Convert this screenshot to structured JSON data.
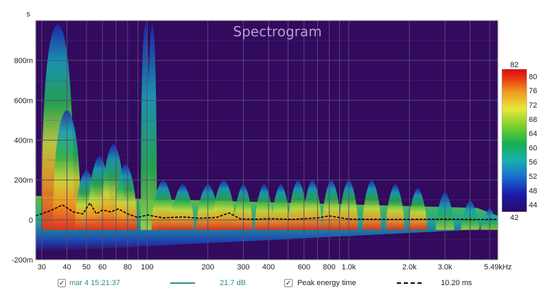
{
  "chart_data": {
    "type": "heatmap",
    "title": "Spectrogram",
    "y_unit_label": "s",
    "y_ticks": [
      {
        "v": 0.8,
        "label": "800m"
      },
      {
        "v": 0.6,
        "label": "600m"
      },
      {
        "v": 0.4,
        "label": "400m"
      },
      {
        "v": 0.2,
        "label": "200m"
      },
      {
        "v": 0.0,
        "label": "0"
      },
      {
        "v": -0.2,
        "label": "-200m"
      }
    ],
    "ylim": [
      -0.2,
      1.0
    ],
    "xlim": [
      28,
      5490
    ],
    "x_scale": "log",
    "x_ticks": [
      {
        "v": 30,
        "label": "30"
      },
      {
        "v": 40,
        "label": "40"
      },
      {
        "v": 50,
        "label": "50"
      },
      {
        "v": 60,
        "label": "60"
      },
      {
        "v": 80,
        "label": "80"
      },
      {
        "v": 100,
        "label": "100"
      },
      {
        "v": 200,
        "label": "200"
      },
      {
        "v": 300,
        "label": "300"
      },
      {
        "v": 400,
        "label": "400"
      },
      {
        "v": 600,
        "label": "600"
      },
      {
        "v": 800,
        "label": "800"
      },
      {
        "v": 1000,
        "label": "1.0k"
      },
      {
        "v": 2000,
        "label": "2.0k"
      },
      {
        "v": 3000,
        "label": "3.0k"
      },
      {
        "v": 5490,
        "label": "5.49kHz"
      }
    ],
    "x_minor": [
      70,
      90,
      500,
      700,
      900,
      4000,
      5000
    ],
    "colorbar": {
      "min": 42,
      "max": 82,
      "labels": [
        "82",
        "80",
        "76",
        "72",
        "68",
        "64",
        "60",
        "56",
        "52",
        "48",
        "44",
        "42"
      ],
      "label_values": [
        82,
        80,
        76,
        72,
        68,
        64,
        60,
        56,
        52,
        48,
        44,
        42
      ]
    },
    "peak_energy_time": [
      [
        28,
        0.02
      ],
      [
        33,
        0.045
      ],
      [
        38,
        0.075
      ],
      [
        43,
        0.04
      ],
      [
        48,
        0.03
      ],
      [
        52,
        0.085
      ],
      [
        56,
        0.03
      ],
      [
        60,
        0.05
      ],
      [
        66,
        0.04
      ],
      [
        72,
        0.055
      ],
      [
        80,
        0.03
      ],
      [
        90,
        0.012
      ],
      [
        100,
        0.025
      ],
      [
        120,
        0.01
      ],
      [
        150,
        0.015
      ],
      [
        180,
        0.008
      ],
      [
        220,
        0.012
      ],
      [
        255,
        0.035
      ],
      [
        290,
        0.005
      ],
      [
        350,
        0.004
      ],
      [
        420,
        0.006
      ],
      [
        520,
        0.003
      ],
      [
        600,
        0.006
      ],
      [
        700,
        0.01
      ],
      [
        800,
        0.02
      ],
      [
        1000,
        0.004
      ],
      [
        1400,
        0.003
      ],
      [
        2000,
        0.003
      ],
      [
        3000,
        0.004
      ],
      [
        4200,
        0.002
      ],
      [
        5490,
        0.003
      ]
    ],
    "energy_blobs": [
      {
        "f": 36,
        "t_top": 0.98,
        "level": 72,
        "w": 0.07
      },
      {
        "f": 40,
        "t_top": 0.55,
        "level": 78,
        "w": 0.06
      },
      {
        "f": 50,
        "t_top": 0.25,
        "level": 66,
        "w": 0.05
      },
      {
        "f": 58,
        "t_top": 0.32,
        "level": 68,
        "w": 0.05
      },
      {
        "f": 68,
        "t_top": 0.38,
        "level": 72,
        "w": 0.05
      },
      {
        "f": 78,
        "t_top": 0.28,
        "level": 70,
        "w": 0.05
      },
      {
        "f": 98,
        "t_top": 0.98,
        "level": 54,
        "w": 0.02
      },
      {
        "f": 106,
        "t_top": 0.98,
        "level": 52,
        "w": 0.02
      },
      {
        "f": 120,
        "t_top": 0.2,
        "level": 74,
        "w": 0.05
      },
      {
        "f": 150,
        "t_top": 0.18,
        "level": 76,
        "w": 0.05
      },
      {
        "f": 200,
        "t_top": 0.18,
        "level": 74,
        "w": 0.05
      },
      {
        "f": 240,
        "t_top": 0.2,
        "level": 80,
        "w": 0.05
      },
      {
        "f": 300,
        "t_top": 0.18,
        "level": 74,
        "w": 0.04
      },
      {
        "f": 380,
        "t_top": 0.18,
        "level": 74,
        "w": 0.04
      },
      {
        "f": 460,
        "t_top": 0.18,
        "level": 74,
        "w": 0.04
      },
      {
        "f": 560,
        "t_top": 0.2,
        "level": 80,
        "w": 0.04
      },
      {
        "f": 660,
        "t_top": 0.2,
        "level": 78,
        "w": 0.04
      },
      {
        "f": 820,
        "t_top": 0.2,
        "level": 80,
        "w": 0.04
      },
      {
        "f": 1000,
        "t_top": 0.2,
        "level": 74,
        "w": 0.04
      },
      {
        "f": 1300,
        "t_top": 0.2,
        "level": 72,
        "w": 0.04
      },
      {
        "f": 1700,
        "t_top": 0.18,
        "level": 70,
        "w": 0.04
      },
      {
        "f": 2200,
        "t_top": 0.16,
        "level": 66,
        "w": 0.04
      },
      {
        "f": 3000,
        "t_top": 0.14,
        "level": 64,
        "w": 0.04
      },
      {
        "f": 4000,
        "t_top": 0.1,
        "level": 58,
        "w": 0.04
      },
      {
        "f": 5000,
        "t_top": 0.06,
        "level": 54,
        "w": 0.04
      }
    ],
    "colors": {
      "background": "#320a5e",
      "grid": "#5a4a7a",
      "peak_line": "#000000",
      "accent": "#2e8b8b"
    }
  },
  "legend": {
    "measurement_label": "mar 4 15:21:37",
    "measurement_value": "21.7 dB",
    "measurement_checked": "✓",
    "peak_label": "Peak energy time",
    "peak_value": "10.20 ms",
    "peak_checked": "✓"
  }
}
